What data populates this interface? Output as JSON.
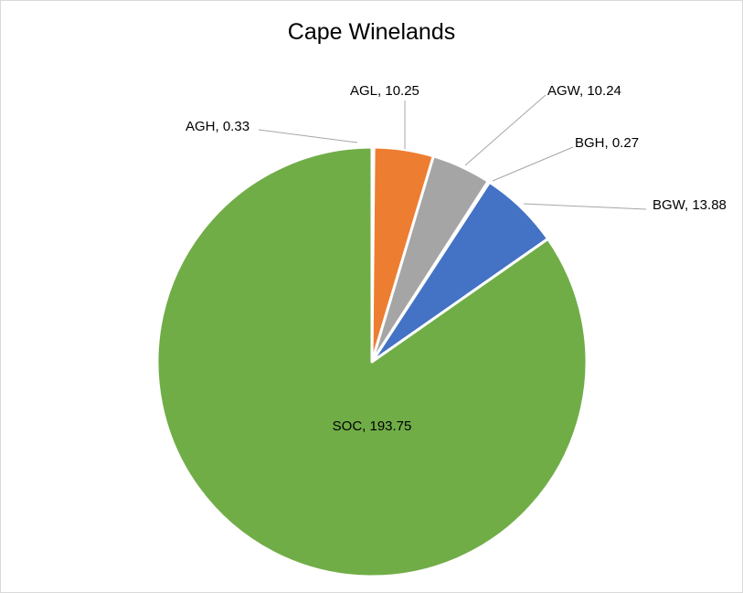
{
  "chart_data": {
    "type": "pie",
    "title": "Cape Winelands",
    "slices": [
      {
        "name": "AGH",
        "value": 0.33,
        "label": "AGH, 0.33",
        "color": "#5b9bd5"
      },
      {
        "name": "AGL",
        "value": 10.25,
        "label": "AGL, 10.25",
        "color": "#ed7d31"
      },
      {
        "name": "AGW",
        "value": 10.24,
        "label": "AGW, 10.24",
        "color": "#a5a5a5"
      },
      {
        "name": "BGH",
        "value": 0.27,
        "label": "BGH, 0.27",
        "color": "#ffc000"
      },
      {
        "name": "BGW",
        "value": 13.88,
        "label": "BGW, 13.88",
        "color": "#4472c4"
      },
      {
        "name": "SOC",
        "value": 193.75,
        "label": "SOC, 193.75",
        "color": "#70ad47"
      }
    ],
    "start_angle": "12 o'clock",
    "direction": "clockwise",
    "legend": "none"
  }
}
